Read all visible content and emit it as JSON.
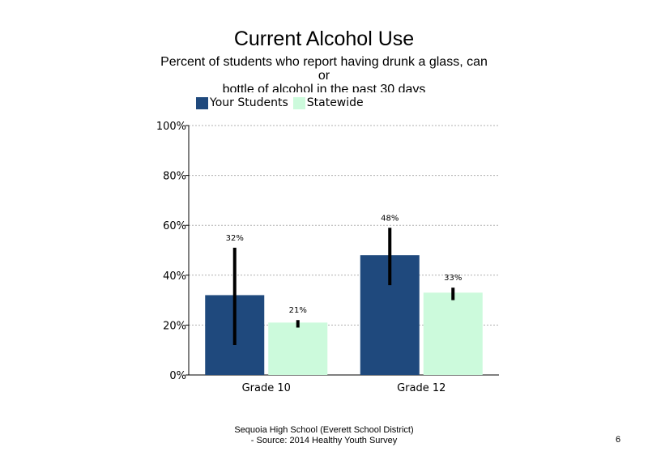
{
  "chart_data": {
    "type": "bar",
    "title": "Current Alcohol Use",
    "subtitle_lines": [
      "Percent of students  who report having drunk a glass, can",
      "or",
      "bottle  of alcohol  in the  past 30 days"
    ],
    "categories": [
      "Grade 10",
      "Grade 12"
    ],
    "series": [
      {
        "name": "Your Students",
        "color": "#1f497d",
        "values": [
          32,
          48
        ],
        "labels": [
          "32%",
          "48%"
        ],
        "error_low": [
          12,
          36
        ],
        "error_high": [
          51,
          59
        ]
      },
      {
        "name": "Statewide",
        "color": "#ccfadc",
        "values": [
          21,
          33
        ],
        "labels": [
          "21%",
          "33%"
        ],
        "error_low": [
          19,
          30
        ],
        "error_high": [
          22,
          35
        ]
      }
    ],
    "ylim": [
      0,
      100
    ],
    "yticks": [
      0,
      20,
      40,
      60,
      80,
      100
    ],
    "ytick_labels": [
      "0%",
      "20%",
      "40%",
      "60%",
      "80%",
      "100%"
    ],
    "grid": true,
    "legend_position": "top-left"
  },
  "footer": {
    "line1": "Sequoia High  School (Everett School District)",
    "line2": "- Source: 2014 Healthy  Youth Survey"
  },
  "page_number": "6"
}
